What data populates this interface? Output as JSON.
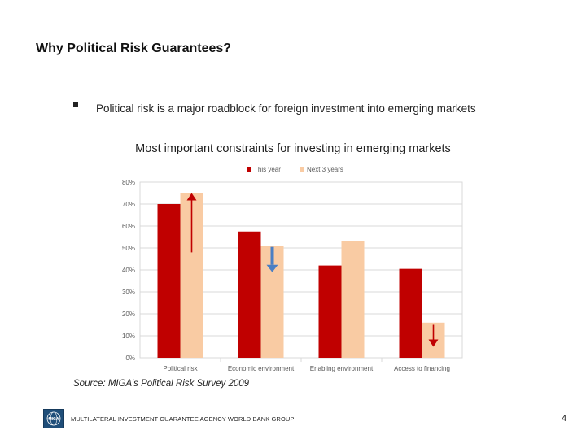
{
  "slide": {
    "title": "Why Political Risk Guarantees?",
    "bullet": "Political risk is a major roadblock for foreign investment into emerging markets",
    "source_label": "Source",
    "source_rest": ": MIGA’s Political Risk Survey 2009",
    "footer": "MULTILATERAL INVESTMENT GUARANTEE AGENCY WORLD BANK GROUP",
    "page_number": "4",
    "logo_text": "MIGA"
  },
  "colors": {
    "this_year": "#c00000",
    "next_3_years": "#f9cba3",
    "arrow_red": "#c00000",
    "arrow_blue": "#4a7fc4",
    "grid": "#d9d9d9",
    "axis_text": "#595959"
  },
  "chart_data": {
    "type": "bar",
    "title": "Most important constraints for investing in emerging markets",
    "categories": [
      "Political risk",
      "Economic environment",
      "Enabling environment",
      "Access to financing"
    ],
    "series": [
      {
        "name": "This year",
        "values": [
          70,
          57.5,
          42,
          40.5
        ]
      },
      {
        "name": "Next 3 years",
        "values": [
          75,
          51,
          53,
          16
        ]
      }
    ],
    "y_ticks": [
      "0%",
      "10%",
      "20%",
      "30%",
      "40%",
      "50%",
      "60%",
      "70%",
      "80%"
    ],
    "ylim": [
      0,
      80
    ],
    "grid": true,
    "legend": "top",
    "annotations": [
      {
        "category": 0,
        "direction": "up",
        "color": "red",
        "from": 48,
        "to": 75
      },
      {
        "category": 1,
        "direction": "down",
        "color": "blue",
        "from": 50.5,
        "to": 39
      },
      {
        "category": 3,
        "direction": "down",
        "color": "red",
        "from": 15,
        "to": 5
      }
    ]
  }
}
